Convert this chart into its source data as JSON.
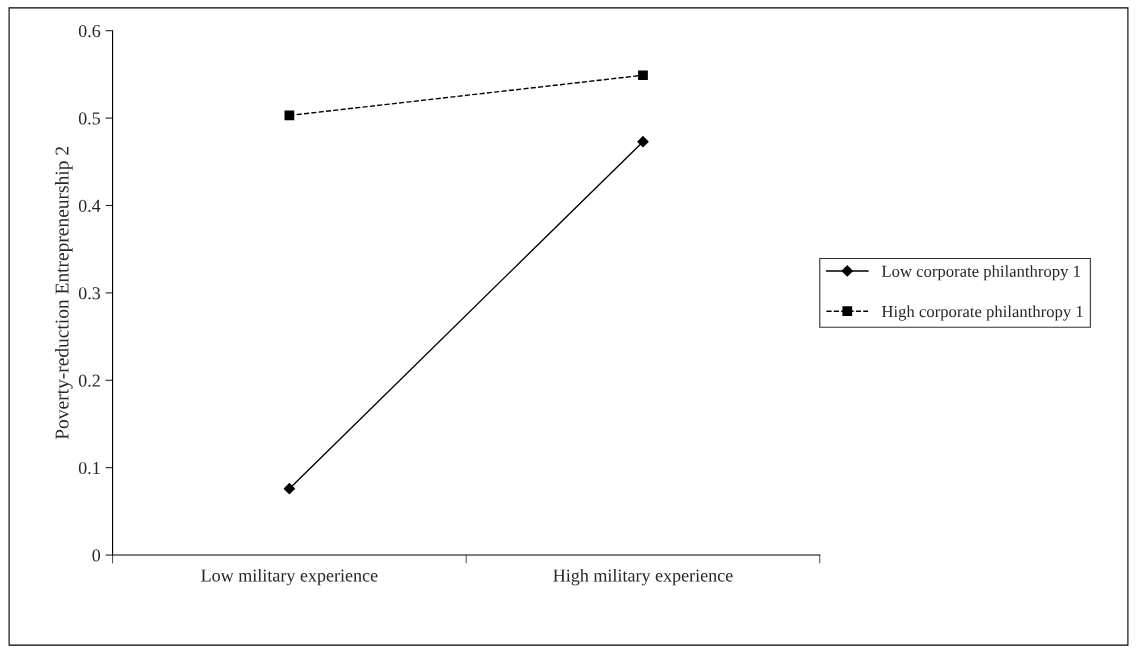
{
  "chart_data": {
    "type": "line",
    "ylabel": "Poverty-reduction Entrepreneurship 2",
    "categories": [
      "Low military experience",
      "High military experience"
    ],
    "series": [
      {
        "name": "Low corporate philanthropy 1",
        "color": "#000000",
        "values": [
          0.076,
          0.473
        ],
        "marker": "diamond",
        "line_style": "solid"
      },
      {
        "name": "High corporate philanthropy 1",
        "color": "#000000",
        "values": [
          0.503,
          0.549
        ],
        "marker": "square",
        "line_style": "dashed"
      }
    ],
    "ylim": [
      0,
      0.6
    ],
    "yticks": [
      0,
      0.1,
      0.2,
      0.3,
      0.4,
      0.5,
      0.6
    ],
    "grid": false,
    "legend": "right"
  }
}
